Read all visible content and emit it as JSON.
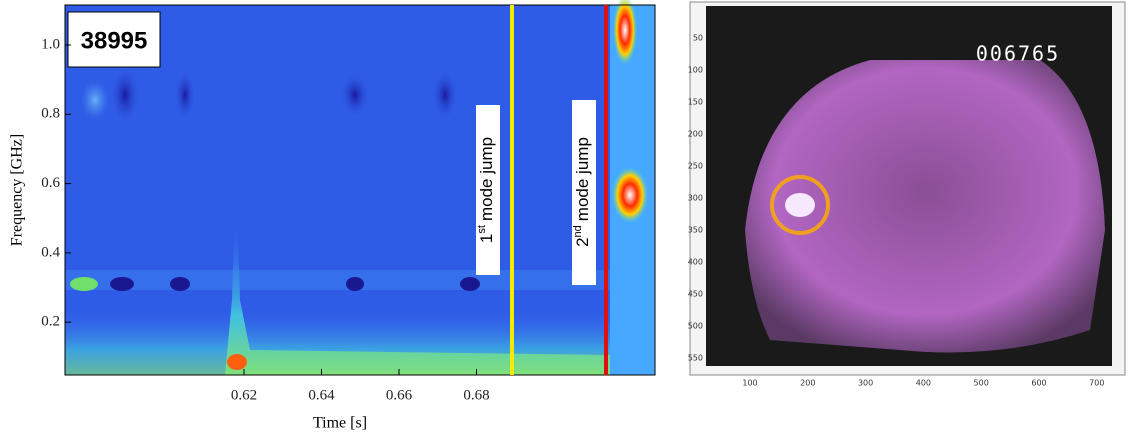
{
  "left_panel": {
    "shot_label": "38995",
    "y_label": "Frequency [GHz]",
    "x_label": "Time [s]",
    "x_ticks": [
      "0.62",
      "0.64",
      "0.66",
      "0.68"
    ],
    "y_ticks": [
      "1.0",
      "0.8",
      "0.6",
      "0.4",
      "0.2"
    ],
    "annotations": [
      {
        "ordinal": "1",
        "suffix": "st",
        "text": "mode jump"
      },
      {
        "ordinal": "2",
        "suffix": "nd",
        "text": "mode jump"
      }
    ]
  },
  "right_panel": {
    "frame_counter": "006765",
    "x_ticks": [
      "100",
      "200",
      "300",
      "400",
      "500",
      "600",
      "700"
    ],
    "y_ticks": [
      "50",
      "100",
      "150",
      "200",
      "250",
      "300",
      "350",
      "400",
      "450",
      "500",
      "550"
    ]
  }
}
